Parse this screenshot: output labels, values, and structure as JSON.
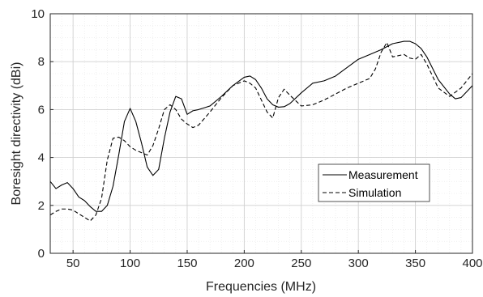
{
  "chart_data": {
    "type": "line",
    "xlabel": "Frequencies (MHz)",
    "ylabel": "Boresight directivity (dBi)",
    "xlim": [
      30,
      400
    ],
    "ylim": [
      0,
      10
    ],
    "xticks": [
      50,
      100,
      150,
      200,
      250,
      300,
      350,
      400
    ],
    "yticks": [
      0,
      2,
      4,
      6,
      8,
      10
    ],
    "grid": "major and minor",
    "legend_position": "right",
    "series": [
      {
        "name": "Measurement",
        "style": "solid",
        "color": "#000000",
        "x": [
          30,
          35,
          40,
          45,
          50,
          55,
          60,
          65,
          70,
          75,
          80,
          85,
          90,
          95,
          100,
          105,
          110,
          115,
          120,
          125,
          130,
          135,
          140,
          145,
          150,
          155,
          160,
          170,
          180,
          190,
          200,
          205,
          210,
          215,
          220,
          225,
          230,
          235,
          240,
          250,
          260,
          270,
          280,
          290,
          300,
          310,
          320,
          330,
          340,
          345,
          350,
          355,
          360,
          370,
          380,
          385,
          390,
          395,
          400
        ],
        "y": [
          3.0,
          2.7,
          2.85,
          2.95,
          2.7,
          2.35,
          2.2,
          1.95,
          1.75,
          1.75,
          2.0,
          2.8,
          4.1,
          5.5,
          6.05,
          5.5,
          4.6,
          3.6,
          3.25,
          3.5,
          4.8,
          5.9,
          6.55,
          6.45,
          5.8,
          5.95,
          6.0,
          6.15,
          6.55,
          7.0,
          7.35,
          7.4,
          7.25,
          6.9,
          6.45,
          6.2,
          6.1,
          6.12,
          6.25,
          6.7,
          7.1,
          7.2,
          7.4,
          7.75,
          8.1,
          8.3,
          8.5,
          8.75,
          8.85,
          8.85,
          8.75,
          8.55,
          8.2,
          7.25,
          6.65,
          6.45,
          6.5,
          6.75,
          7.0
        ]
      },
      {
        "name": "Simulation",
        "style": "dashed",
        "color": "#000000",
        "x": [
          30,
          35,
          40,
          45,
          50,
          55,
          60,
          65,
          70,
          75,
          80,
          85,
          90,
          95,
          100,
          105,
          110,
          115,
          120,
          125,
          130,
          135,
          140,
          145,
          150,
          155,
          160,
          170,
          180,
          190,
          200,
          205,
          210,
          215,
          220,
          225,
          230,
          235,
          240,
          250,
          260,
          270,
          280,
          290,
          300,
          310,
          315,
          320,
          325,
          330,
          340,
          345,
          350,
          355,
          360,
          370,
          380,
          390,
          400
        ],
        "y": [
          1.6,
          1.75,
          1.85,
          1.85,
          1.8,
          1.65,
          1.5,
          1.35,
          1.6,
          2.3,
          3.9,
          4.8,
          4.85,
          4.7,
          4.45,
          4.3,
          4.2,
          4.1,
          4.5,
          5.2,
          6.0,
          6.2,
          6.0,
          5.6,
          5.4,
          5.25,
          5.35,
          5.9,
          6.5,
          7.0,
          7.2,
          7.1,
          6.9,
          6.4,
          5.9,
          5.65,
          6.5,
          6.85,
          6.6,
          6.15,
          6.2,
          6.4,
          6.65,
          6.9,
          7.1,
          7.3,
          7.7,
          8.4,
          8.8,
          8.2,
          8.3,
          8.15,
          8.1,
          8.3,
          7.9,
          6.9,
          6.55,
          6.9,
          7.5
        ]
      }
    ]
  }
}
